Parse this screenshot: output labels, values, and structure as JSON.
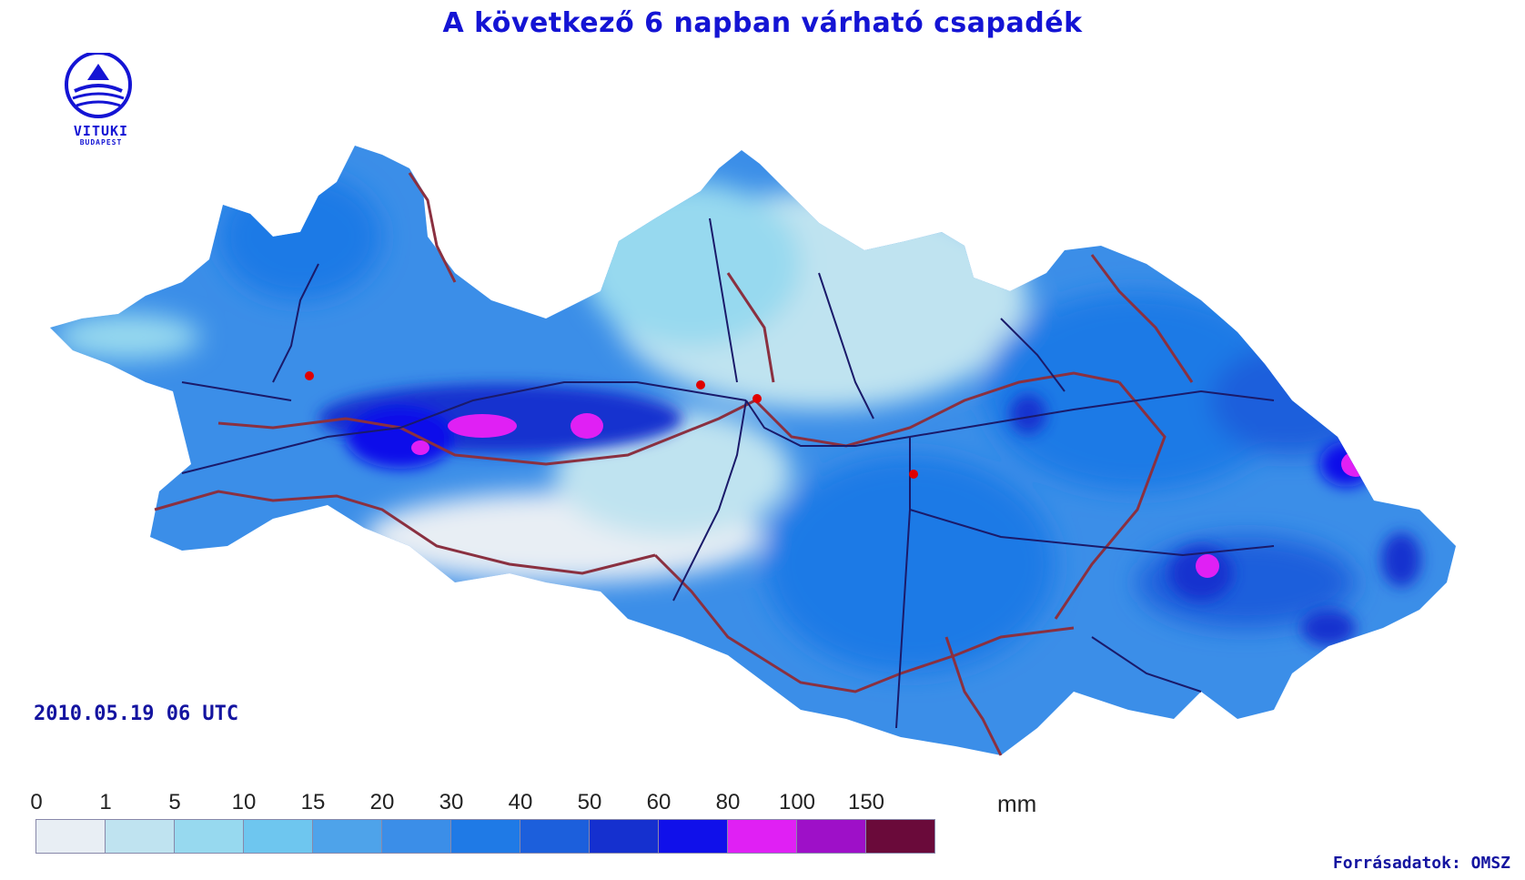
{
  "title": "A következő 6 napban várható csapadék",
  "logo": {
    "name": "VITUKI",
    "sub": "BUDAPEST"
  },
  "timestamp": "2010.05.19 06 UTC",
  "legend": {
    "unit": "mm",
    "ticks": [
      "0",
      "1",
      "5",
      "10",
      "15",
      "20",
      "30",
      "40",
      "50",
      "60",
      "80",
      "100",
      "150"
    ],
    "colors": [
      "#e8eef4",
      "#bfe3f0",
      "#97d9ef",
      "#6ec6ef",
      "#4ea3ea",
      "#3b8ee8",
      "#1f7ae6",
      "#1c5fdc",
      "#1530cf",
      "#1010ea",
      "#e020f4",
      "#9e10c8",
      "#6a0a3a"
    ]
  },
  "source": "Forrásadatok: OMSZ",
  "map_colors": {
    "background_basin": "#4ea3ea",
    "light": "#bfe3f0",
    "dark": "#1530cf",
    "max": "#e020f4",
    "borders": "#8a3040",
    "rivers": "#1a1a6a",
    "stations": "#e00000"
  }
}
